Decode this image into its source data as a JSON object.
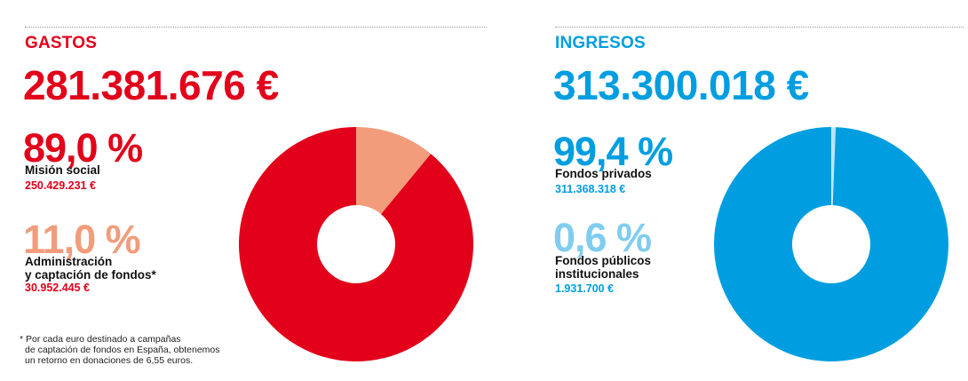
{
  "colors": {
    "red": "#e2001a",
    "salmon": "#f29c7c",
    "blue": "#009ee0",
    "light_blue": "#b8e4f8",
    "light_blue_text": "#7fcdef"
  },
  "gastos": {
    "title": "GASTOS",
    "total": "281.381.676 €",
    "items": [
      {
        "pct": "89,0 %",
        "label_lines": [
          "Misión social"
        ],
        "amount": "250.429.231 €"
      },
      {
        "pct": "11,0 %",
        "label_lines": [
          "Administración",
          "y captación de fondos*"
        ],
        "amount": "30.952.445 €"
      }
    ],
    "footnote_lines": [
      "* Por cada euro destinado a campañas",
      "de captación de fondos en España, obtenemos",
      "un retorno en donaciones de 6,55 euros."
    ]
  },
  "ingresos": {
    "title": "INGRESOS",
    "total": "313.300.018 €",
    "items": [
      {
        "pct": "99,4 %",
        "label_lines": [
          "Fondos privados"
        ],
        "amount": "311.368.318 €"
      },
      {
        "pct": "0,6 %",
        "label_lines": [
          "Fondos públicos",
          "institucionales"
        ],
        "amount": "1.931.700 €"
      }
    ]
  },
  "chart_data": [
    {
      "type": "pie",
      "title": "GASTOS",
      "categories": [
        "Misión social",
        "Administración y captación de fondos"
      ],
      "values": [
        89.0,
        11.0
      ],
      "amounts": [
        250429231,
        30952445
      ],
      "colors": [
        "#e2001a",
        "#f29c7c"
      ]
    },
    {
      "type": "pie",
      "title": "INGRESOS",
      "categories": [
        "Fondos privados",
        "Fondos públicos institucionales"
      ],
      "values": [
        99.4,
        0.6
      ],
      "amounts": [
        311368318,
        1931700
      ],
      "colors": [
        "#009ee0",
        "#b8e4f8"
      ]
    }
  ]
}
